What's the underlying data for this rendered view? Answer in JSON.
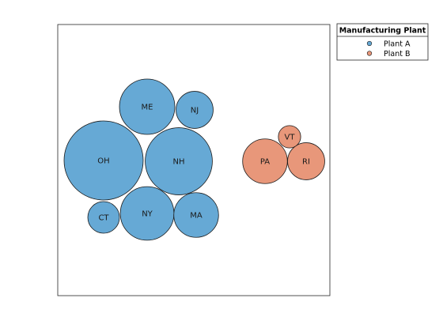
{
  "chart_data": {
    "type": "bubble-cluster",
    "legend": {
      "title": "Manufacturing Plant",
      "placement": "top-right, outside axes"
    },
    "series": [
      {
        "name": "Plant A",
        "color": "#66A9D5",
        "bubbles": [
          {
            "label": "OH",
            "size": 100
          },
          {
            "label": "NH",
            "size": 72
          },
          {
            "label": "ME",
            "size": 49
          },
          {
            "label": "NY",
            "size": 46
          },
          {
            "label": "MA",
            "size": 32
          },
          {
            "label": "NJ",
            "size": 22
          },
          {
            "label": "CT",
            "size": 16
          }
        ]
      },
      {
        "name": "Plant B",
        "color": "#E8977A",
        "bubbles": [
          {
            "label": "PA",
            "size": 32
          },
          {
            "label": "RI",
            "size": 22
          },
          {
            "label": "VT",
            "size": 8
          }
        ]
      }
    ],
    "grid": false
  }
}
